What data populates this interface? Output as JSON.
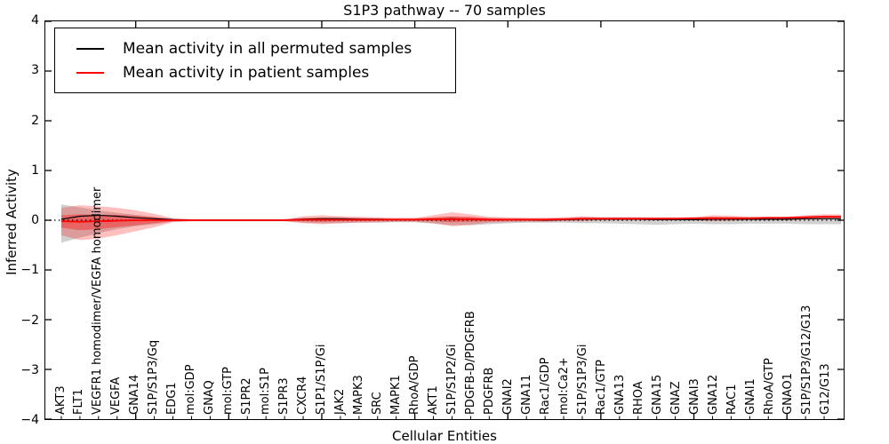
{
  "chart_data": {
    "type": "line",
    "title": "S1P3 pathway -- 70 samples",
    "xlabel": "Cellular Entities",
    "ylabel": "Inferred Activity",
    "ylim": [
      -4,
      4
    ],
    "yticks": [
      {
        "value": 4,
        "label": "4"
      },
      {
        "value": 3,
        "label": "3"
      },
      {
        "value": 2,
        "label": "2"
      },
      {
        "value": 1,
        "label": "1"
      },
      {
        "value": 0,
        "label": "0"
      },
      {
        "value": -1,
        "label": "−1"
      },
      {
        "value": -2,
        "label": "−2"
      },
      {
        "value": -3,
        "label": "−3"
      },
      {
        "value": -4,
        "label": "−4"
      }
    ],
    "grid": false,
    "legend_position": "upper left",
    "legend": [
      {
        "label": "Mean activity in all permuted samples",
        "color": "#000000"
      },
      {
        "label": "Mean activity in patient samples",
        "color": "#ff0000"
      }
    ],
    "zero_line": {
      "value": 0,
      "style": "dotted",
      "color": "#000000"
    },
    "band_colors": {
      "permuted_band": "rgba(120,120,120,0.35)",
      "patient_band_outer": "rgba(255,0,0,0.25)",
      "patient_band_inner": "rgba(255,0,0,0.35)"
    },
    "categories": [
      "AKT3",
      "FLT1",
      "VEGFR1 homodimer/VEGFA homodimer",
      "VEGFA",
      "GNA14",
      "S1P/S1P3/Gq",
      "EDG1",
      "mol:GDP",
      "GNAQ",
      "mol:GTP",
      "S1PR2",
      "mol:S1P",
      "S1PR3",
      "CXCR4",
      "S1P1/S1P/Gi",
      "JAK2",
      "MAPK3",
      "SRC",
      "MAPK1",
      "RhoA/GDP",
      "AKT1",
      "S1P/S1P2/Gi",
      "PDGFB-D/PDGFRB",
      "PDGFRB",
      "GNAI2",
      "GNA11",
      "Rac1/GDP",
      "mol:Ca2+",
      "S1P/S1P3/Gi",
      "Rac1/GTP",
      "GNA13",
      "RHOA",
      "GNA15",
      "GNAZ",
      "GNAI3",
      "GNA12",
      "RAC1",
      "GNAI1",
      "RhoA/GTP",
      "GNAO1",
      "S1P/S1P3/G12/G13",
      "G12/G13"
    ],
    "series": [
      {
        "name": "permuted_mean",
        "values": [
          0.02,
          0.08,
          0.1,
          0.08,
          0.05,
          0.03,
          0.01,
          0.0,
          0.0,
          0.0,
          0.0,
          0.0,
          0.0,
          0.02,
          0.03,
          0.03,
          0.02,
          0.02,
          0.01,
          0.01,
          0.02,
          0.03,
          0.02,
          0.01,
          0.01,
          0.01,
          0.0,
          0.01,
          0.02,
          0.02,
          0.02,
          0.02,
          0.01,
          0.01,
          0.01,
          0.02,
          0.02,
          0.02,
          0.02,
          0.02,
          0.03,
          0.03
        ]
      },
      {
        "name": "patient_mean",
        "values": [
          -0.02,
          -0.03,
          -0.02,
          -0.01,
          0.0,
          0.0,
          0.0,
          0.0,
          0.0,
          0.0,
          0.0,
          0.0,
          0.0,
          0.01,
          0.01,
          0.01,
          0.01,
          0.01,
          0.01,
          0.01,
          0.02,
          0.02,
          0.02,
          0.01,
          0.01,
          0.01,
          0.01,
          0.02,
          0.03,
          0.03,
          0.03,
          0.03,
          0.03,
          0.03,
          0.04,
          0.04,
          0.04,
          0.04,
          0.05,
          0.05,
          0.06,
          0.07
        ]
      },
      {
        "name": "permuted_band_upper",
        "values": [
          0.32,
          0.26,
          0.2,
          0.15,
          0.11,
          0.07,
          0.03,
          0.02,
          0.02,
          0.02,
          0.02,
          0.02,
          0.02,
          0.05,
          0.06,
          0.06,
          0.05,
          0.04,
          0.04,
          0.04,
          0.05,
          0.07,
          0.06,
          0.05,
          0.04,
          0.04,
          0.04,
          0.04,
          0.06,
          0.06,
          0.06,
          0.06,
          0.05,
          0.05,
          0.05,
          0.06,
          0.06,
          0.06,
          0.06,
          0.06,
          0.07,
          0.07
        ]
      },
      {
        "name": "permuted_band_lower",
        "values": [
          -0.45,
          -0.35,
          -0.26,
          -0.18,
          -0.12,
          -0.08,
          -0.03,
          -0.02,
          -0.02,
          -0.02,
          -0.02,
          -0.02,
          -0.02,
          -0.05,
          -0.06,
          -0.06,
          -0.05,
          -0.05,
          -0.04,
          -0.04,
          -0.07,
          -0.1,
          -0.1,
          -0.08,
          -0.06,
          -0.05,
          -0.05,
          -0.05,
          -0.06,
          -0.06,
          -0.07,
          -0.08,
          -0.09,
          -0.08,
          -0.07,
          -0.08,
          -0.08,
          -0.07,
          -0.07,
          -0.07,
          -0.08,
          -0.08
        ]
      },
      {
        "name": "patient_band_upper",
        "values": [
          0.25,
          0.3,
          0.28,
          0.25,
          0.2,
          0.13,
          0.04,
          0.02,
          0.02,
          0.02,
          0.02,
          0.02,
          0.02,
          0.08,
          0.1,
          0.08,
          0.07,
          0.06,
          0.05,
          0.05,
          0.1,
          0.16,
          0.12,
          0.07,
          0.06,
          0.05,
          0.05,
          0.06,
          0.08,
          0.06,
          0.06,
          0.06,
          0.06,
          0.06,
          0.06,
          0.1,
          0.09,
          0.07,
          0.07,
          0.07,
          0.1,
          0.12
        ]
      },
      {
        "name": "patient_band_lower",
        "values": [
          -0.3,
          -0.4,
          -0.37,
          -0.3,
          -0.22,
          -0.14,
          -0.04,
          -0.02,
          -0.02,
          -0.02,
          -0.02,
          -0.02,
          -0.02,
          -0.06,
          -0.08,
          -0.06,
          -0.05,
          -0.04,
          -0.03,
          -0.03,
          -0.06,
          -0.12,
          -0.09,
          -0.05,
          -0.04,
          -0.03,
          -0.03,
          -0.02,
          -0.02,
          0.0,
          0.0,
          0.0,
          0.0,
          0.0,
          0.0,
          -0.02,
          -0.01,
          0.0,
          0.0,
          0.0,
          0.01,
          0.02
        ]
      },
      {
        "name": "patient_band_inner_upper",
        "values": [
          0.1,
          0.12,
          0.11,
          0.11,
          0.09,
          0.06,
          0.02,
          0.01,
          0.01,
          0.01,
          0.01,
          0.01,
          0.01,
          0.04,
          0.05,
          0.04,
          0.04,
          0.03,
          0.03,
          0.03,
          0.06,
          0.08,
          0.07,
          0.04,
          0.03,
          0.03,
          0.03,
          0.04,
          0.05,
          0.04,
          0.04,
          0.04,
          0.04,
          0.04,
          0.05,
          0.07,
          0.06,
          0.05,
          0.06,
          0.06,
          0.08,
          0.09
        ]
      },
      {
        "name": "patient_band_inner_lower",
        "values": [
          -0.15,
          -0.2,
          -0.18,
          -0.14,
          -0.1,
          -0.06,
          -0.02,
          -0.01,
          -0.01,
          -0.01,
          -0.01,
          -0.01,
          -0.01,
          -0.02,
          -0.03,
          -0.02,
          -0.02,
          -0.01,
          -0.01,
          -0.01,
          -0.02,
          -0.04,
          -0.03,
          -0.02,
          -0.01,
          -0.01,
          -0.01,
          0.0,
          0.01,
          0.01,
          0.01,
          0.01,
          0.01,
          0.01,
          0.02,
          0.01,
          0.02,
          0.02,
          0.03,
          0.03,
          0.04,
          0.05
        ]
      }
    ],
    "x_major_tick_positions": [
      5,
      10,
      15,
      20,
      25,
      30,
      35,
      40
    ]
  }
}
